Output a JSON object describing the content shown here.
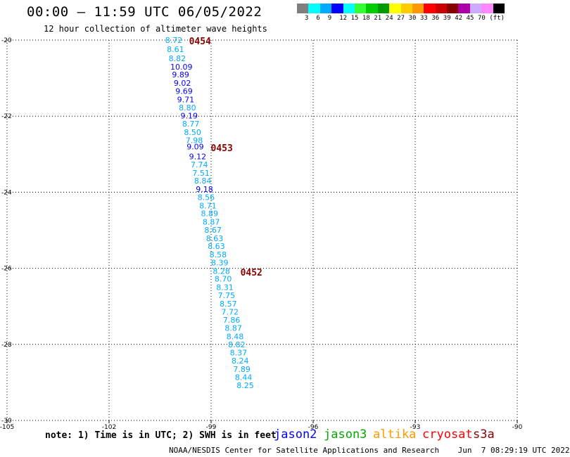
{
  "header": {
    "title": "00:00 – 11:59 UTC 06/05/2022",
    "subtitle": "12 hour collection of altimeter wave heights"
  },
  "legend": {
    "colors": [
      "#7f7f7f",
      "#00ffff",
      "#00aaff",
      "#0000ff",
      "#00ffff",
      "#33ff33",
      "#00cc00",
      "#009900",
      "#ffff00",
      "#ffcc00",
      "#ff9900",
      "#ff0000",
      "#cc0000",
      "#880000",
      "#aa00aa",
      "#ccaaff",
      "#ff88ff",
      "#000000"
    ],
    "labels": [
      "3",
      "6",
      "9",
      "12",
      "15",
      "18",
      "21",
      "24",
      "27",
      "30",
      "33",
      "36",
      "39",
      "42",
      "45",
      "70",
      "(ft)"
    ]
  },
  "chart_data": {
    "type": "scatter",
    "title": "00:00 – 11:59 UTC 06/05/2022",
    "subtitle": "12 hour collection of altimeter wave heights",
    "xlim": [
      -105,
      -90
    ],
    "ylim": [
      -30,
      -20
    ],
    "x_ticks": [
      "-105",
      "-102",
      "-99",
      "-96",
      "-93",
      "-90"
    ],
    "y_ticks": [
      "-20",
      "-22",
      "-24",
      "-26",
      "-28",
      "-30"
    ],
    "grid": true,
    "series": [
      {
        "name": "jason2",
        "points": [
          {
            "lon": -100.35,
            "lat": -20.0,
            "swh": "8.72",
            "color": "#00aaff"
          },
          {
            "lon": -100.3,
            "lat": -20.24,
            "swh": "8.61",
            "color": "#00aaff"
          },
          {
            "lon": -100.25,
            "lat": -20.48,
            "swh": "8.82",
            "color": "#00aaff"
          },
          {
            "lon": -100.2,
            "lat": -20.7,
            "swh": "10.09",
            "color": "#0000ff"
          },
          {
            "lon": -100.15,
            "lat": -20.91,
            "swh": "9.89",
            "color": "#0000ff"
          },
          {
            "lon": -100.1,
            "lat": -21.13,
            "swh": "9.02",
            "color": "#0000ff"
          },
          {
            "lon": -100.05,
            "lat": -21.34,
            "swh": "9.69",
            "color": "#0000ff"
          },
          {
            "lon": -100.0,
            "lat": -21.56,
            "swh": "9.71",
            "color": "#0000ff"
          },
          {
            "lon": -99.95,
            "lat": -21.77,
            "swh": "8.80",
            "color": "#00aaff"
          },
          {
            "lon": -99.9,
            "lat": -21.99,
            "swh": "9.19",
            "color": "#0000ff"
          },
          {
            "lon": -99.85,
            "lat": -22.2,
            "swh": "8.77",
            "color": "#00aaff"
          },
          {
            "lon": -99.8,
            "lat": -22.42,
            "swh": "8.50",
            "color": "#00aaff"
          },
          {
            "lon": -99.75,
            "lat": -22.63,
            "swh": "7.98",
            "color": "#00aaff"
          },
          {
            "lon": -99.72,
            "lat": -22.8,
            "swh": "9.09",
            "color": "#0000ff"
          },
          {
            "lon": -99.65,
            "lat": -23.06,
            "swh": "9.12",
            "color": "#0000ff"
          },
          {
            "lon": -99.6,
            "lat": -23.27,
            "swh": "7.74",
            "color": "#00aaff"
          },
          {
            "lon": -99.55,
            "lat": -23.49,
            "swh": "7.51",
            "color": "#00aaff"
          },
          {
            "lon": -99.5,
            "lat": -23.7,
            "swh": "8.84",
            "color": "#00aaff"
          },
          {
            "lon": -99.45,
            "lat": -23.92,
            "swh": "9.18",
            "color": "#0000ff"
          },
          {
            "lon": -99.4,
            "lat": -24.13,
            "swh": "8.56",
            "color": "#00aaff"
          },
          {
            "lon": -99.35,
            "lat": -24.35,
            "swh": "8.71",
            "color": "#00aaff"
          },
          {
            "lon": -99.3,
            "lat": -24.56,
            "swh": "8.89",
            "color": "#00aaff"
          },
          {
            "lon": -99.25,
            "lat": -24.78,
            "swh": "8.87",
            "color": "#00aaff"
          },
          {
            "lon": -99.2,
            "lat": -24.99,
            "swh": "8.67",
            "color": "#00aaff"
          },
          {
            "lon": -99.15,
            "lat": -25.21,
            "swh": "8.63",
            "color": "#00aaff"
          },
          {
            "lon": -99.1,
            "lat": -25.42,
            "swh": "8.63",
            "color": "#00aaff"
          },
          {
            "lon": -99.05,
            "lat": -25.64,
            "swh": "8.58",
            "color": "#00aaff"
          },
          {
            "lon": -99.0,
            "lat": -25.85,
            "swh": "8.39",
            "color": "#00aaff"
          },
          {
            "lon": -98.95,
            "lat": -26.07,
            "swh": "8.28",
            "color": "#00aaff"
          },
          {
            "lon": -98.9,
            "lat": -26.28,
            "swh": "8.70",
            "color": "#00aaff"
          },
          {
            "lon": -98.85,
            "lat": -26.5,
            "swh": "8.31",
            "color": "#00aaff"
          },
          {
            "lon": -98.8,
            "lat": -26.71,
            "swh": "7.75",
            "color": "#00aaff"
          },
          {
            "lon": -98.75,
            "lat": -26.93,
            "swh": "8.57",
            "color": "#00aaff"
          },
          {
            "lon": -98.7,
            "lat": -27.14,
            "swh": "7.72",
            "color": "#00aaff"
          },
          {
            "lon": -98.65,
            "lat": -27.36,
            "swh": "7.86",
            "color": "#00aaff"
          },
          {
            "lon": -98.6,
            "lat": -27.57,
            "swh": "8.87",
            "color": "#00aaff"
          },
          {
            "lon": -98.55,
            "lat": -27.79,
            "swh": "8.48",
            "color": "#00aaff"
          },
          {
            "lon": -98.5,
            "lat": -28.0,
            "swh": "8.82",
            "color": "#00aaff"
          },
          {
            "lon": -98.45,
            "lat": -28.22,
            "swh": "8.37",
            "color": "#00aaff"
          },
          {
            "lon": -98.4,
            "lat": -28.43,
            "swh": "8.24",
            "color": "#00aaff"
          },
          {
            "lon": -98.35,
            "lat": -28.65,
            "swh": "7.89",
            "color": "#00aaff"
          },
          {
            "lon": -98.3,
            "lat": -28.86,
            "swh": "8.44",
            "color": "#00aaff"
          },
          {
            "lon": -98.25,
            "lat": -29.08,
            "swh": "8.25",
            "color": "#00aaff"
          }
        ]
      }
    ],
    "annotations": [
      {
        "text": "0454",
        "lon": -99.65,
        "lat": -20.02,
        "color": "#880000"
      },
      {
        "text": "0453",
        "lon": -99.01,
        "lat": -22.83,
        "color": "#880000"
      },
      {
        "text": "0452",
        "lon": -98.14,
        "lat": -26.1,
        "color": "#880000"
      }
    ]
  },
  "footer": {
    "note": "note: 1) Time is in UTC; 2) SWH is in feet",
    "missions": [
      {
        "label": "jason2",
        "color": "#0000ff"
      },
      {
        "label": "jason3",
        "color": "#00aa00"
      },
      {
        "label": "altika",
        "color": "#ff9900"
      },
      {
        "label": "cryosat",
        "color": "#ff0000"
      },
      {
        "label": "s3a",
        "color": "#880000"
      }
    ],
    "credit": "NOAA/NESDIS Center for Satellite Applications and Research    Jun  7 08:29:19 UTC 2022"
  }
}
